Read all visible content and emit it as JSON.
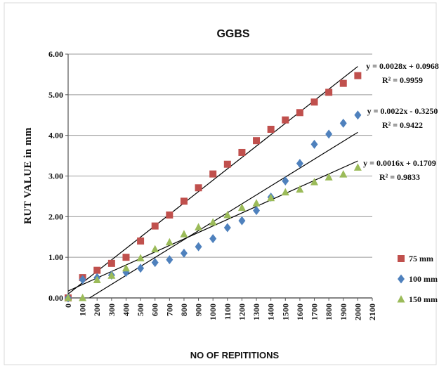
{
  "chart_data": {
    "type": "scatter",
    "title": "GGBS",
    "xlabel": "NO OF REPITITIONS",
    "ylabel": "RUT  VALUE in mm",
    "xlim": [
      0,
      2100
    ],
    "ylim": [
      0,
      6
    ],
    "xticks": [
      "0",
      "100",
      "200",
      "300",
      "400",
      "500",
      "600",
      "700",
      "800",
      "900",
      "1000",
      "1100",
      "1200",
      "1300",
      "1400",
      "1500",
      "1600",
      "1700",
      "1800",
      "1900",
      "2000",
      "2100"
    ],
    "yticks": [
      "0.00",
      "1.00",
      "2.00",
      "3.00",
      "4.00",
      "5.00",
      "6.00"
    ],
    "grid": "horizontal",
    "legend_position": "right",
    "x": [
      0,
      100,
      200,
      300,
      400,
      500,
      600,
      700,
      800,
      900,
      1000,
      1100,
      1200,
      1300,
      1400,
      1500,
      1600,
      1700,
      1800,
      1900,
      2000
    ],
    "series": [
      {
        "name": "75 mm",
        "marker": "square",
        "color": "#c0504d",
        "values": [
          0.0,
          0.5,
          0.68,
          0.85,
          1.0,
          1.4,
          1.77,
          2.04,
          2.38,
          2.71,
          3.05,
          3.29,
          3.58,
          3.87,
          4.15,
          4.38,
          4.56,
          4.82,
          5.06,
          5.28,
          5.47
        ],
        "trendline": {
          "slope": 0.0028,
          "intercept": 0.0968,
          "x_range": [
            0,
            2000
          ]
        },
        "equation": "y = 0.0028x + 0.0968",
        "r2": "R² = 0.9959"
      },
      {
        "name": "100 mm",
        "marker": "diamond",
        "color": "#4f81bd",
        "values": [
          0.0,
          0.45,
          0.5,
          0.56,
          0.63,
          0.73,
          0.87,
          0.94,
          1.1,
          1.26,
          1.46,
          1.73,
          1.9,
          2.15,
          2.48,
          2.88,
          3.31,
          3.78,
          4.03,
          4.3,
          4.5
        ],
        "trendline": {
          "slope": 0.0022,
          "intercept": -0.325,
          "x_range": [
            148,
            2000
          ]
        },
        "equation": "y = 0.0022x - 0.3250",
        "r2": "R² = 0.9422"
      },
      {
        "name": "150 mm",
        "marker": "triangle",
        "color": "#9bbb59",
        "values": [
          0.0,
          0.0,
          0.44,
          0.55,
          0.73,
          0.98,
          1.2,
          1.37,
          1.57,
          1.74,
          1.86,
          2.04,
          2.22,
          2.33,
          2.46,
          2.6,
          2.67,
          2.85,
          2.97,
          3.04,
          3.21
        ],
        "trendline": {
          "slope": 0.0016,
          "intercept": 0.1709,
          "x_range": [
            0,
            2000
          ]
        },
        "equation": "y = 0.0016x + 0.1709",
        "r2": "R² = 0.9833"
      }
    ]
  }
}
